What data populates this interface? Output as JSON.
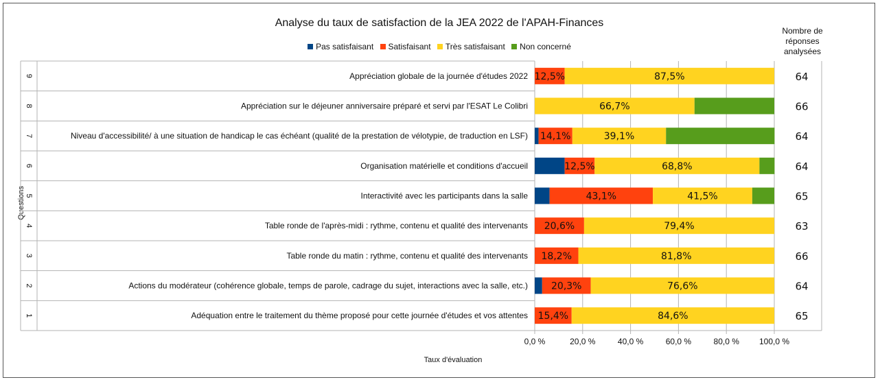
{
  "chart_data": {
    "type": "bar",
    "orientation": "horizontal",
    "stacked": true,
    "title": "Analyse du taux de satisfaction de la JEA 2022 de l'APAH-Finances",
    "xlabel": "Taux d'évaluation",
    "ylabel": "Questions",
    "xlim": [
      0,
      100
    ],
    "xticks": [
      "0,0 %",
      "20,0 %",
      "40,0 %",
      "60,0 %",
      "80,0 %",
      "100,0 %"
    ],
    "grid": true,
    "legend_position": "top",
    "count_header": "Nombre de réponses analysées",
    "series": [
      {
        "name": "Pas satisfaisant",
        "color": "#004586"
      },
      {
        "name": "Satisfaisant",
        "color": "#ff420e"
      },
      {
        "name": "Très satisfaisant",
        "color": "#ffd320"
      },
      {
        "name": "Non concerné",
        "color": "#579d1c"
      }
    ],
    "rows": [
      {
        "num": "9",
        "label": "Appréciation globale de la journée d'études 2022",
        "values": [
          0,
          12.5,
          87.5,
          0
        ],
        "data_labels": [
          "",
          "12,5%",
          "87,5%",
          ""
        ],
        "count": "64"
      },
      {
        "num": "8",
        "label": "Appréciation sur le déjeuner anniversaire préparé et servi par l'ESAT Le Colibri",
        "values": [
          0,
          0,
          66.7,
          33.3
        ],
        "data_labels": [
          "",
          "",
          "66,7%",
          ""
        ],
        "count": "66"
      },
      {
        "num": "7",
        "label": "Niveau d'accessibilité/ à une situation de handicap le cas échéant (qualité de la prestation de vélotypie, de traduction en LSF)",
        "values": [
          1.6,
          14.1,
          39.1,
          45.3
        ],
        "data_labels": [
          "",
          "14,1%",
          "39,1%",
          ""
        ],
        "count": "64"
      },
      {
        "num": "6",
        "label": "Organisation matérielle et conditions d'accueil",
        "values": [
          12.5,
          12.5,
          68.8,
          6.3
        ],
        "data_labels": [
          "",
          "12,5%",
          "68,8%",
          ""
        ],
        "count": "64"
      },
      {
        "num": "5",
        "label": "Interactivité avec les participants dans la salle",
        "values": [
          6.2,
          43.1,
          41.5,
          9.2
        ],
        "data_labels": [
          "",
          "43,1%",
          "41,5%",
          ""
        ],
        "count": "65"
      },
      {
        "num": "4",
        "label": "Table ronde de l'après-midi : rythme, contenu et qualité des intervenants",
        "values": [
          0,
          20.6,
          79.4,
          0
        ],
        "data_labels": [
          "",
          "20,6%",
          "79,4%",
          ""
        ],
        "count": "63"
      },
      {
        "num": "3",
        "label": "Table ronde du matin : rythme, contenu et qualité des intervenants",
        "values": [
          0,
          18.2,
          81.8,
          0
        ],
        "data_labels": [
          "",
          "18,2%",
          "81,8%",
          ""
        ],
        "count": "66"
      },
      {
        "num": "2",
        "label": "Actions du modérateur (cohérence globale, temps de parole, cadrage du sujet, interactions avec la salle, etc.)",
        "values": [
          3.1,
          20.3,
          76.6,
          0
        ],
        "data_labels": [
          "",
          "20,3%",
          "76,6%",
          ""
        ],
        "count": "64"
      },
      {
        "num": "1",
        "label": "Adéquation entre le traitement du thème proposé pour cette journée d'études et vos attentes",
        "values": [
          0,
          15.4,
          84.6,
          0
        ],
        "data_labels": [
          "",
          "15,4%",
          "84,6%",
          ""
        ],
        "count": "65"
      }
    ]
  }
}
